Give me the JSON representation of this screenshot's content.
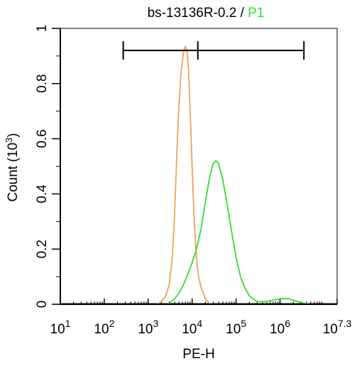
{
  "chart_data": {
    "type": "line",
    "title": {
      "prefix": "bs-13136R-0.2 / ",
      "highlight": "P1"
    },
    "xlabel": "PE-H",
    "ylabel": {
      "main": "Count  (10",
      "exp": "3",
      "close": ")"
    },
    "x_scale": "log10",
    "xlim": [
      10,
      19952623
    ],
    "ylim": [
      0,
      1
    ],
    "x_ticks": [
      {
        "value": 10,
        "base": "10",
        "exp": "1"
      },
      {
        "value": 100,
        "base": "10",
        "exp": "2"
      },
      {
        "value": 1000,
        "base": "10",
        "exp": "3"
      },
      {
        "value": 10000,
        "base": "10",
        "exp": "4"
      },
      {
        "value": 100000,
        "base": "10",
        "exp": "5"
      },
      {
        "value": 1000000,
        "base": "10",
        "exp": "6"
      },
      {
        "value": 19952623,
        "base": "10",
        "exp": "7.3"
      }
    ],
    "y_ticks": [
      {
        "value": 0,
        "label": "0"
      },
      {
        "value": 0.2,
        "label": "0.2"
      },
      {
        "value": 0.4,
        "label": "0.4"
      },
      {
        "value": 0.6,
        "label": "0.6"
      },
      {
        "value": 0.8,
        "label": "0.8"
      },
      {
        "value": 1,
        "label": "1"
      }
    ],
    "gate": {
      "x_start": 270,
      "x_mid": 13500,
      "x_end": 3500000,
      "y": 0.92
    },
    "series": [
      {
        "color": "#f0a058",
        "points": [
          [
            1600,
            0
          ],
          [
            2000,
            0.01
          ],
          [
            2500,
            0.03
          ],
          [
            3000,
            0.07
          ],
          [
            3500,
            0.16
          ],
          [
            4000,
            0.33
          ],
          [
            4500,
            0.55
          ],
          [
            5000,
            0.72
          ],
          [
            5600,
            0.84
          ],
          [
            6300,
            0.91
          ],
          [
            7000,
            0.935
          ],
          [
            7600,
            0.92
          ],
          [
            8300,
            0.85
          ],
          [
            9000,
            0.7
          ],
          [
            10000,
            0.5
          ],
          [
            11000,
            0.32
          ],
          [
            12500,
            0.17
          ],
          [
            14000,
            0.1
          ],
          [
            16000,
            0.06
          ],
          [
            18000,
            0.04
          ],
          [
            20000,
            0.02
          ],
          [
            24000,
            0.005
          ],
          [
            30000,
            0
          ]
        ]
      },
      {
        "color": "#33dd33",
        "points": [
          [
            2800,
            0
          ],
          [
            4000,
            0.02
          ],
          [
            5000,
            0.04
          ],
          [
            6300,
            0.07
          ],
          [
            8000,
            0.11
          ],
          [
            10000,
            0.15
          ],
          [
            12600,
            0.2
          ],
          [
            15800,
            0.27
          ],
          [
            20000,
            0.37
          ],
          [
            25000,
            0.46
          ],
          [
            30000,
            0.51
          ],
          [
            35000,
            0.52
          ],
          [
            40000,
            0.51
          ],
          [
            50000,
            0.45
          ],
          [
            63000,
            0.36
          ],
          [
            80000,
            0.26
          ],
          [
            100000,
            0.17
          ],
          [
            126000,
            0.1
          ],
          [
            158000,
            0.06
          ],
          [
            200000,
            0.03
          ],
          [
            300000,
            0.01
          ],
          [
            500000,
            0.01
          ],
          [
            1000000,
            0.02
          ],
          [
            1600000,
            0.02
          ],
          [
            2500000,
            0.01
          ],
          [
            3500000,
            0.004
          ],
          [
            5000000,
            0
          ]
        ]
      }
    ]
  }
}
